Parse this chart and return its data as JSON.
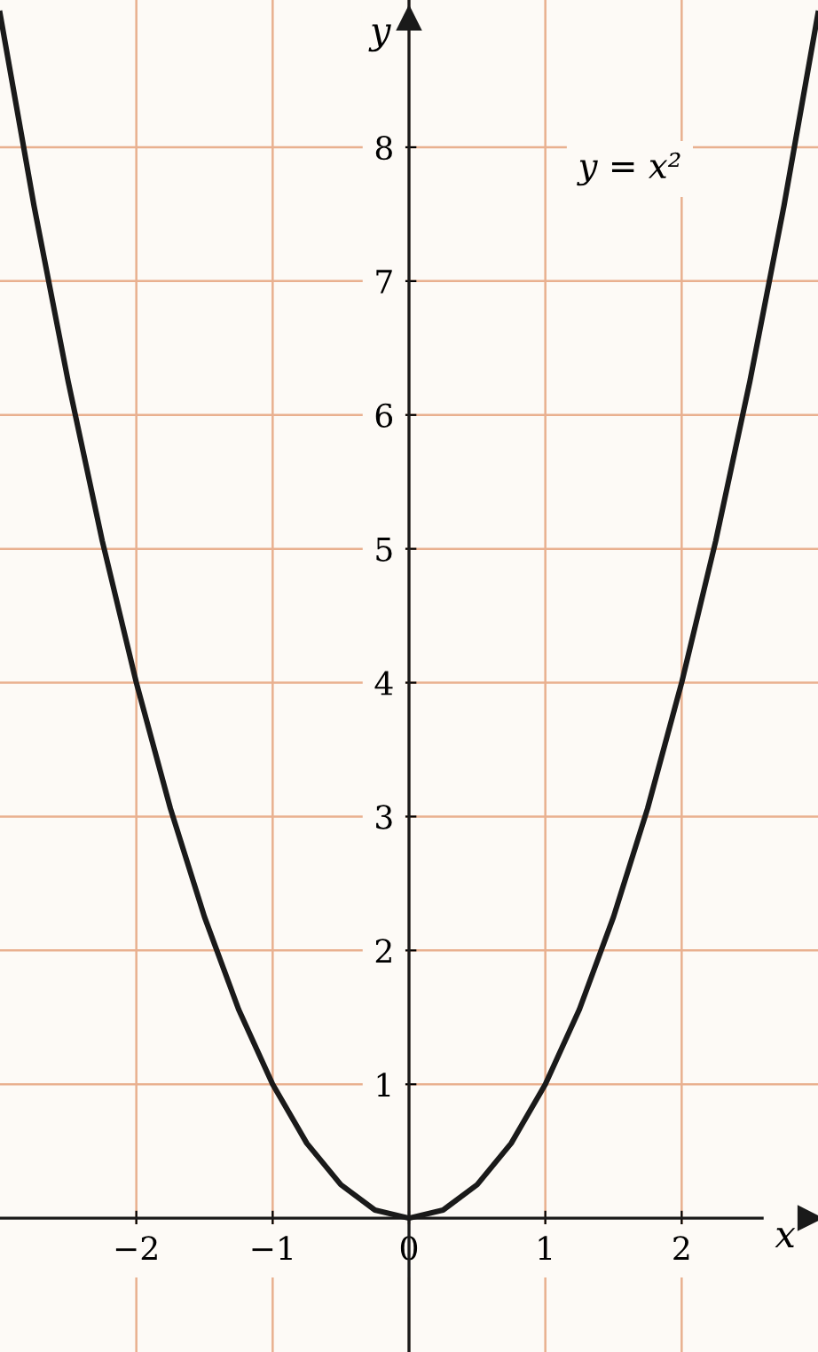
{
  "chart_data": {
    "type": "line",
    "xlabel": "x",
    "ylabel": "y",
    "annotations": [
      "y = x²"
    ],
    "x": [
      -3,
      -2.75,
      -2.5,
      -2.25,
      -2,
      -1.75,
      -1.5,
      -1.25,
      -1,
      -0.75,
      -0.5,
      -0.25,
      0,
      0.25,
      0.5,
      0.75,
      1,
      1.25,
      1.5,
      1.75,
      2,
      2.25,
      2.5,
      2.75,
      3
    ],
    "series": [
      {
        "color": "#1a1a1a",
        "values": [
          9,
          7.56,
          6.25,
          5.06,
          4,
          3.06,
          2.25,
          1.56,
          1,
          0.56,
          0.25,
          0.06,
          0,
          0.06,
          0.25,
          0.56,
          1,
          1.56,
          2.25,
          3.06,
          4,
          5.06,
          6.25,
          7.56,
          9
        ]
      }
    ],
    "xlim": [
      -3,
      3
    ],
    "ylim": [
      -1,
      9.1
    ],
    "xticks": [
      -2,
      -1,
      0,
      1,
      2
    ],
    "yticks": [
      1,
      2,
      3,
      4,
      5,
      6,
      7,
      8
    ],
    "grid": true,
    "marker": "none",
    "line_style": "solid"
  }
}
